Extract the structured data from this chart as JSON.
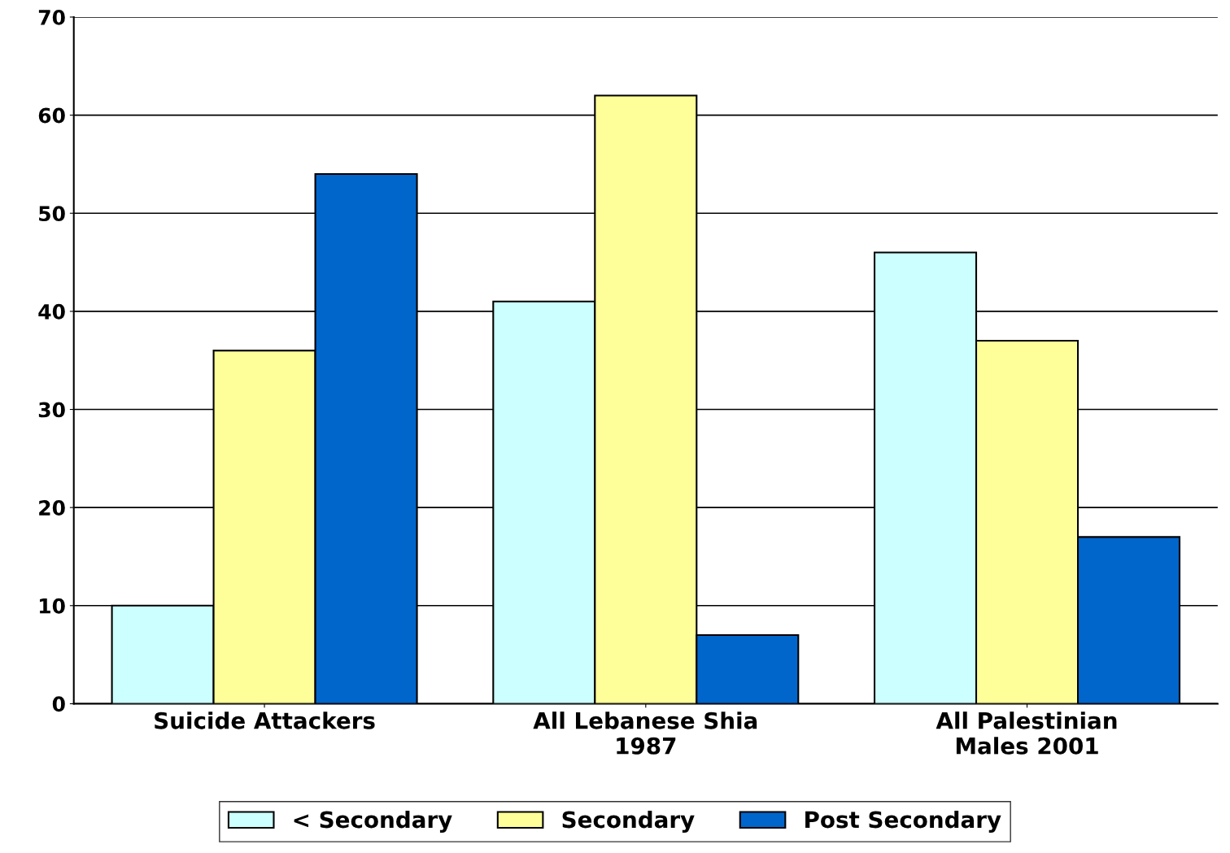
{
  "chart_data": {
    "type": "bar",
    "categories": [
      "Suicide Attackers",
      "All Lebanese Shia\n1987",
      "All Palestinian\nMales 2001"
    ],
    "series": [
      {
        "name": "< Secondary",
        "color": "#ccffff",
        "values": [
          10,
          41,
          46
        ]
      },
      {
        "name": "Secondary",
        "color": "#ffff99",
        "values": [
          36,
          62,
          37
        ]
      },
      {
        "name": "Post Secondary",
        "color": "#0066cc",
        "values": [
          54,
          7,
          17
        ]
      }
    ],
    "ylim": [
      0,
      70
    ],
    "yticks": [
      0,
      10,
      20,
      30,
      40,
      50,
      60,
      70
    ],
    "grid": "y",
    "legend": "bottom"
  }
}
